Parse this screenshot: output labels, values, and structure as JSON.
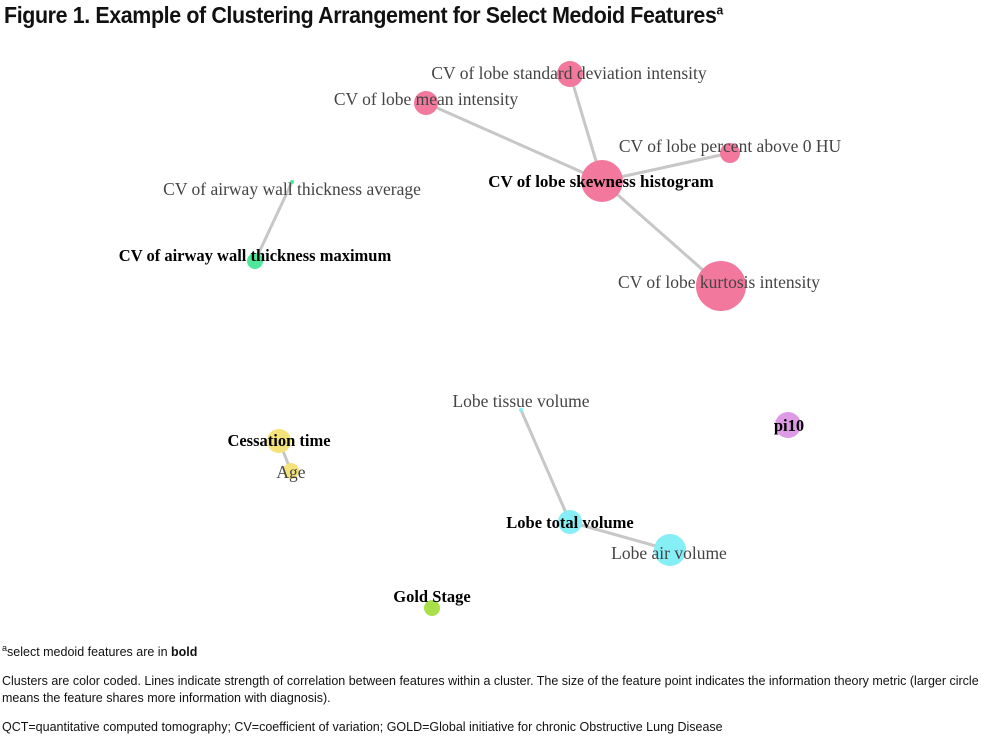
{
  "title": {
    "text": "Figure 1. Example of Clustering Arrangement for Select Medoid Features",
    "superscript": "a"
  },
  "colors": {
    "pink": "#f2789e",
    "green": "#4de89a",
    "yellow": "#f5e27a",
    "cyan": "#86eef5",
    "lime": "#a9e04a",
    "violet": "#dd9ae5",
    "edge": "#c7c7c7"
  },
  "nodes": [
    {
      "id": "sd",
      "label": "CV of lobe standard deviation intensity",
      "bold": false,
      "cluster": "pink"
    },
    {
      "id": "mean",
      "label": "CV of lobe mean intensity",
      "bold": false,
      "cluster": "pink"
    },
    {
      "id": "pct",
      "label": "CV of lobe percent above 0 HU",
      "bold": false,
      "cluster": "pink"
    },
    {
      "id": "skew",
      "label": "CV of lobe skewness histogram",
      "bold": true,
      "cluster": "pink"
    },
    {
      "id": "kurt",
      "label": "CV of lobe kurtosis intensity",
      "bold": false,
      "cluster": "pink"
    },
    {
      "id": "awavg",
      "label": "CV of airway wall thickness average",
      "bold": false,
      "cluster": "green"
    },
    {
      "id": "awmax",
      "label": "CV of airway wall thickness maximum",
      "bold": true,
      "cluster": "green"
    },
    {
      "id": "tissue",
      "label": "Lobe tissue volume",
      "bold": false,
      "cluster": "cyan"
    },
    {
      "id": "total",
      "label": "Lobe total volume",
      "bold": true,
      "cluster": "cyan"
    },
    {
      "id": "air",
      "label": "Lobe air volume",
      "bold": false,
      "cluster": "cyan"
    },
    {
      "id": "cess",
      "label": "Cessation time",
      "bold": true,
      "cluster": "yellow"
    },
    {
      "id": "age",
      "label": "Age",
      "bold": false,
      "cluster": "yellow"
    },
    {
      "id": "pi10",
      "label": "pi10",
      "bold": true,
      "cluster": "violet"
    },
    {
      "id": "gold",
      "label": "Gold Stage",
      "bold": true,
      "cluster": "lime"
    }
  ],
  "edges": [
    [
      "skew",
      "sd"
    ],
    [
      "skew",
      "mean"
    ],
    [
      "skew",
      "pct"
    ],
    [
      "skew",
      "kurt"
    ],
    [
      "awavg",
      "awmax"
    ],
    [
      "tissue",
      "total"
    ],
    [
      "total",
      "air"
    ],
    [
      "cess",
      "age"
    ]
  ],
  "notes": {
    "footnote_sup": "a",
    "footnote_text": "select medoid features are in ",
    "footnote_bold": "bold",
    "description": "Clusters are color coded. Lines indicate strength of correlation between features within a cluster. The size of the feature point indicates the information theory metric (larger circle means the feature shares more information with diagnosis).",
    "abbreviations": "QCT=quantitative computed tomography; CV=coefficient of variation; GOLD=Global initiative for chronic Obstructive Lung Disease"
  }
}
